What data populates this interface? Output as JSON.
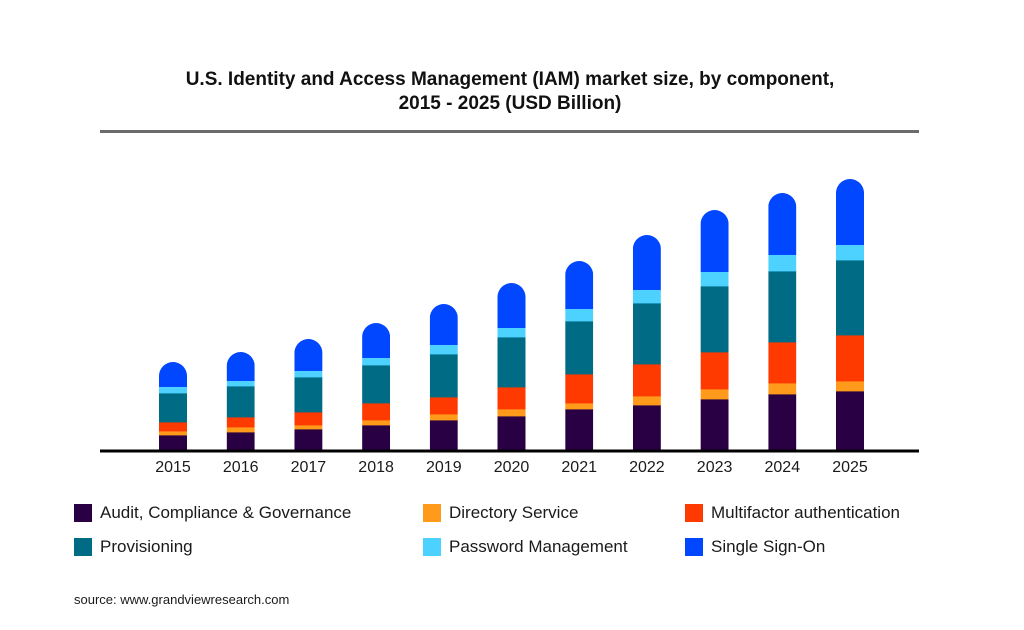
{
  "chart_data": {
    "type": "bar",
    "stacked": true,
    "title": "U.S. Identity and Access Management (IAM) market size, by component, 2015 - 2025 (USD Billion)",
    "title_lines": [
      "U.S. Identity and Access Management (IAM) market size, by component,",
      "2015 - 2025 (USD Billion)"
    ],
    "xlabel": "",
    "ylabel": "",
    "y_axis_shown": false,
    "grid": false,
    "legend_position": "bottom",
    "categories": [
      "2015",
      "2016",
      "2017",
      "2018",
      "2019",
      "2020",
      "2021",
      "2022",
      "2023",
      "2024",
      "2025"
    ],
    "ylim": [
      0,
      14
    ],
    "series": [
      {
        "name": "Audit, Compliance & Governance",
        "color": "#2a0045",
        "values": [
          0.75,
          0.9,
          1.05,
          1.25,
          1.5,
          1.7,
          2.05,
          2.25,
          2.55,
          2.8,
          2.95
        ]
      },
      {
        "name": "Directory Service",
        "color": "#ff9a1a",
        "values": [
          0.2,
          0.25,
          0.2,
          0.25,
          0.3,
          0.35,
          0.3,
          0.45,
          0.5,
          0.55,
          0.5
        ]
      },
      {
        "name": "Multifactor authentication",
        "color": "#ff3a00",
        "values": [
          0.45,
          0.5,
          0.65,
          0.85,
          0.85,
          1.1,
          1.45,
          1.6,
          1.85,
          2.05,
          2.3
        ]
      },
      {
        "name": "Provisioning",
        "color": "#006b85",
        "values": [
          1.45,
          1.55,
          1.75,
          1.9,
          2.15,
          2.5,
          2.65,
          3.05,
          3.3,
          3.55,
          3.75
        ]
      },
      {
        "name": "Password Management",
        "color": "#4dd2ff",
        "values": [
          0.3,
          0.25,
          0.3,
          0.35,
          0.45,
          0.45,
          0.6,
          0.65,
          0.7,
          0.8,
          0.75
        ]
      },
      {
        "name": "Single Sign-On",
        "color": "#0047ff",
        "values": [
          1.25,
          1.45,
          1.6,
          1.75,
          2.05,
          2.25,
          2.4,
          2.75,
          3.1,
          3.1,
          3.3
        ]
      }
    ],
    "note": "No y-axis is printed; values are estimated from relative bar heights."
  },
  "legend": {
    "items": [
      {
        "label": "Audit, Compliance & Governance",
        "color": "#2a0045"
      },
      {
        "label": "Directory Service",
        "color": "#ff9a1a"
      },
      {
        "label": "Multifactor authentication",
        "color": "#ff3a00"
      },
      {
        "label": "Provisioning",
        "color": "#006b85"
      },
      {
        "label": "Password Management",
        "color": "#4dd2ff"
      },
      {
        "label": "Single Sign-On",
        "color": "#0047ff"
      }
    ]
  },
  "source": "source: www.grandviewresearch.com"
}
